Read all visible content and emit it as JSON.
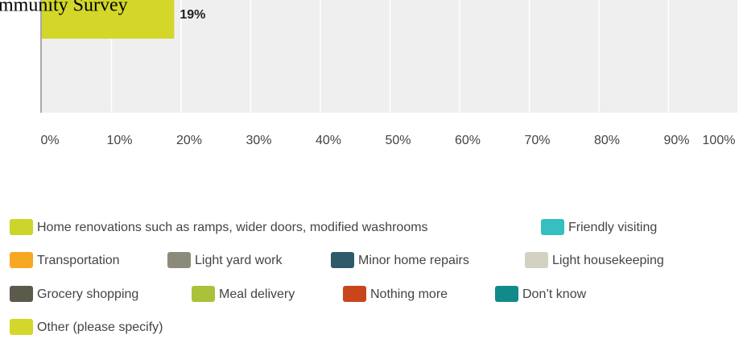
{
  "chart_data": {
    "type": "bar",
    "orientation": "horizontal",
    "title": "mmunity Survey",
    "categories": [
      null
    ],
    "series": [
      {
        "name": "Home renovations such as ramps, wider doors, modified washrooms",
        "color": "#cbd52b",
        "values": [
          null
        ]
      },
      {
        "name": "Friendly visiting",
        "color": "#35bfbf",
        "values": [
          null
        ]
      },
      {
        "name": "Transportation",
        "color": "#f7a823",
        "values": [
          null
        ]
      },
      {
        "name": "Light yard work",
        "color": "#8c8b7b",
        "values": [
          null
        ]
      },
      {
        "name": "Minor home repairs",
        "color": "#2e5a6a",
        "values": [
          null
        ]
      },
      {
        "name": "Light housekeeping",
        "color": "#d3d1c1",
        "values": [
          null
        ]
      },
      {
        "name": "Grocery shopping",
        "color": "#5c5a4a",
        "values": [
          null
        ]
      },
      {
        "name": "Meal delivery",
        "color": "#a9c23a",
        "values": [
          null
        ]
      },
      {
        "name": "Nothing more",
        "color": "#c9461d",
        "values": [
          null
        ]
      },
      {
        "name": "Don’t know",
        "color": "#138a8a",
        "values": [
          null
        ]
      },
      {
        "name": "Other (please specify)",
        "color": "#d3d72a",
        "values": [
          19
        ],
        "value_labels": [
          "19%"
        ]
      }
    ],
    "xlim": [
      0,
      100
    ],
    "xticks": [
      {
        "value": 0,
        "label": "0%"
      },
      {
        "value": 10,
        "label": "10%"
      },
      {
        "value": 20,
        "label": "20%"
      },
      {
        "value": 30,
        "label": "30%"
      },
      {
        "value": 40,
        "label": "40%"
      },
      {
        "value": 50,
        "label": "50%"
      },
      {
        "value": 60,
        "label": "60%"
      },
      {
        "value": 70,
        "label": "70%"
      },
      {
        "value": 80,
        "label": "80%"
      },
      {
        "value": 90,
        "label": "90%"
      },
      {
        "value": 100,
        "label": "100%"
      }
    ],
    "grid": true
  }
}
